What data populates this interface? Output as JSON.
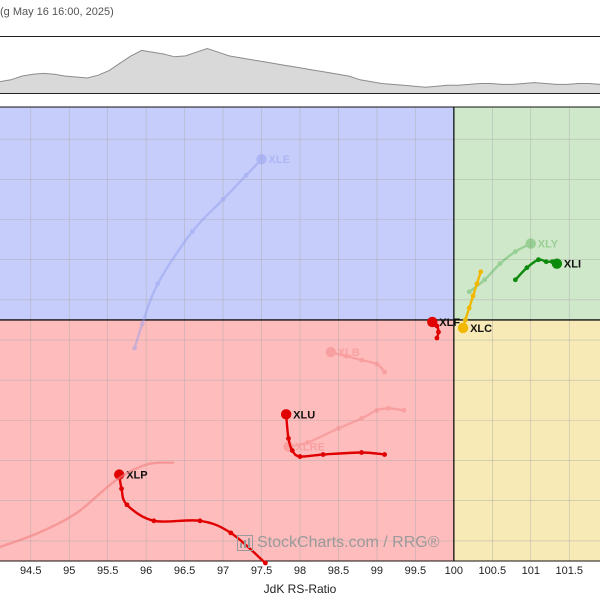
{
  "header": {
    "caption": "(g May 16 16:00, 2025)"
  },
  "watermark": {
    "text": "StockCharts.com / RRG®"
  },
  "colors": {
    "leading": "#cfe8c9",
    "weakening": "#f8eab7",
    "lagging": "#ffbcbc",
    "improving": "#c7cdfa",
    "gridline": "#a9a9a9",
    "benchmark_line": "#8c8c8c",
    "benchmark_fill": "#d9d9d9"
  },
  "benchmark": {
    "values": [
      8,
      10,
      14,
      16,
      17,
      16,
      14,
      13,
      12,
      15,
      20,
      28,
      36,
      42,
      40,
      38,
      35,
      36,
      40,
      44,
      40,
      36,
      34,
      32,
      30,
      28,
      26,
      24,
      22,
      20,
      18,
      16,
      14,
      10,
      8,
      6,
      5,
      4,
      3,
      2,
      3,
      4,
      4,
      5,
      6,
      6,
      5,
      5,
      6,
      7,
      6,
      5,
      5,
      6,
      6,
      5
    ]
  },
  "chart_data": {
    "type": "scatter",
    "title": "",
    "xlabel": "JdK RS-Ratio",
    "ylabel": "",
    "xlim": [
      94.1,
      101.9
    ],
    "ylim": [
      94.0,
      105.3
    ],
    "x_ticks": [
      "94.5",
      "95",
      "95.5",
      "96",
      "96.5",
      "97",
      "97.5",
      "98",
      "98.5",
      "99",
      "99.5",
      "100",
      "100.5",
      "101",
      "101.5"
    ],
    "x_tick_values": [
      94.5,
      95,
      95.5,
      96,
      96.5,
      97,
      97.5,
      98,
      98.5,
      99,
      99.5,
      100,
      100.5,
      101,
      101.5
    ],
    "center": [
      100,
      100
    ],
    "grid": true,
    "series": [
      {
        "name": "XLE",
        "color": "#8f9bf0",
        "opacity": 0.45,
        "points": [
          [
            95.85,
            99.3
          ],
          [
            95.95,
            99.9
          ],
          [
            96.15,
            100.9
          ],
          [
            96.6,
            102.2
          ],
          [
            97.0,
            103.0
          ],
          [
            97.3,
            103.6
          ],
          [
            97.5,
            104.0
          ]
        ]
      },
      {
        "name": "XLY",
        "color": "#34a334",
        "opacity": 0.35,
        "points": [
          [
            100.2,
            100.7
          ],
          [
            100.4,
            101.0
          ],
          [
            100.6,
            101.4
          ],
          [
            100.8,
            101.7
          ],
          [
            101.0,
            101.9
          ]
        ]
      },
      {
        "name": "XLI",
        "color": "#0b8a0b",
        "opacity": 1.0,
        "points": [
          [
            100.8,
            101.0
          ],
          [
            100.95,
            101.3
          ],
          [
            101.1,
            101.5
          ],
          [
            101.2,
            101.45
          ],
          [
            101.28,
            101.45
          ],
          [
            101.34,
            101.4
          ]
        ]
      },
      {
        "name": "XLC",
        "color": "#f0b800",
        "opacity": 1.0,
        "points": [
          [
            100.35,
            101.2
          ],
          [
            100.3,
            100.9
          ],
          [
            100.25,
            100.6
          ],
          [
            100.2,
            100.3
          ],
          [
            100.15,
            100.0
          ],
          [
            100.12,
            99.8
          ]
        ]
      },
      {
        "name": "XLF",
        "color": "#e00000",
        "opacity": 1.0,
        "points": [
          [
            99.78,
            99.55
          ],
          [
            99.8,
            99.7
          ],
          [
            99.78,
            99.85
          ],
          [
            99.72,
            99.95
          ]
        ]
      },
      {
        "name": "XLB",
        "color": "#f08080",
        "opacity": 0.45,
        "points": [
          [
            99.1,
            98.7
          ],
          [
            99.0,
            98.9
          ],
          [
            98.8,
            99.0
          ],
          [
            98.6,
            99.1
          ],
          [
            98.4,
            99.2
          ]
        ]
      },
      {
        "name": "XLRE",
        "color": "#f08080",
        "opacity": 0.45,
        "points": [
          [
            99.35,
            97.75
          ],
          [
            99.15,
            97.8
          ],
          [
            99.0,
            97.75
          ],
          [
            98.8,
            97.55
          ],
          [
            98.5,
            97.3
          ],
          [
            98.1,
            96.95
          ],
          [
            97.85,
            96.85
          ]
        ]
      },
      {
        "name": "XLU",
        "color": "#e00000",
        "opacity": 1.0,
        "points": [
          [
            99.1,
            96.65
          ],
          [
            98.8,
            96.7
          ],
          [
            98.3,
            96.65
          ],
          [
            98.0,
            96.6
          ],
          [
            97.9,
            96.75
          ],
          [
            97.85,
            97.05
          ],
          [
            97.82,
            97.65
          ]
        ]
      },
      {
        "name": "XLP",
        "color": "#e00000",
        "opacity": 1.0,
        "points": [
          [
            97.55,
            93.95
          ],
          [
            97.1,
            94.7
          ],
          [
            96.7,
            95.0
          ],
          [
            96.1,
            95.0
          ],
          [
            95.75,
            95.4
          ],
          [
            95.68,
            95.8
          ],
          [
            95.65,
            96.15
          ]
        ]
      },
      {
        "name": "",
        "color": "#f08080",
        "opacity": 0.6,
        "points": [
          [
            96.35,
            96.45
          ],
          [
            96.0,
            96.4
          ],
          [
            95.6,
            96.0
          ],
          [
            95.1,
            95.2
          ],
          [
            94.6,
            94.7
          ],
          [
            94.1,
            94.35
          ]
        ]
      }
    ]
  }
}
